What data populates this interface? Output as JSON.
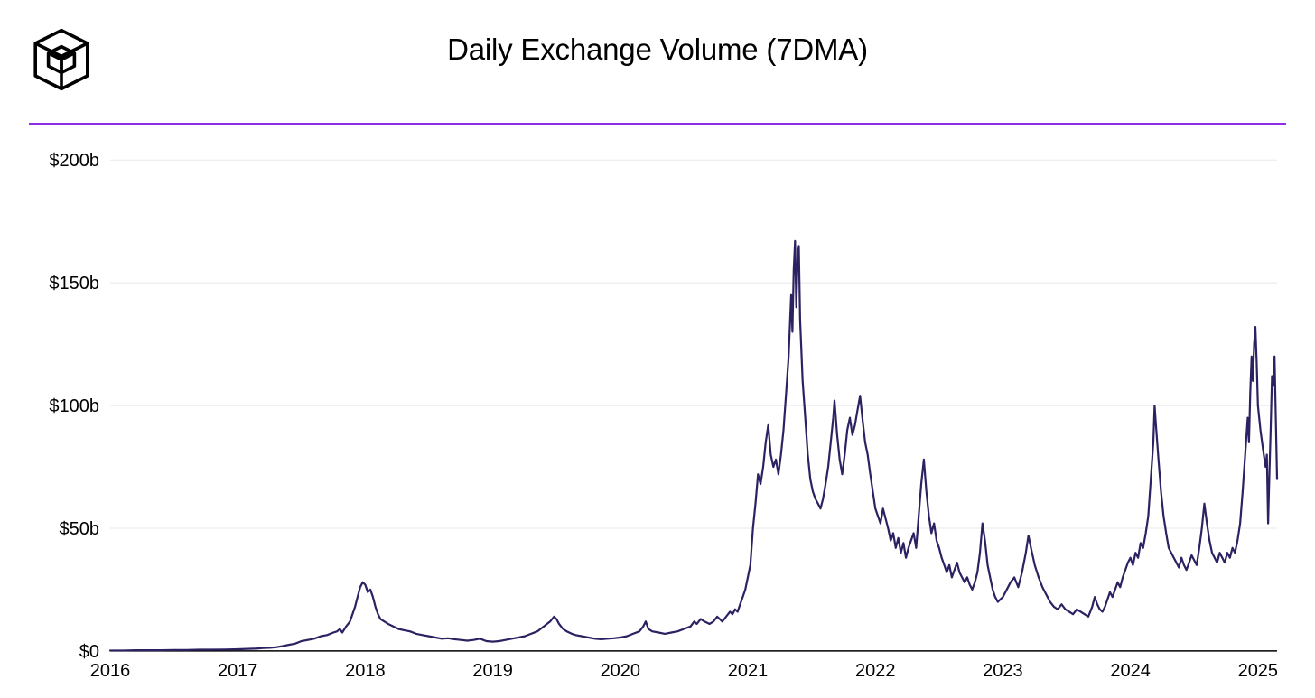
{
  "title": "Daily Exchange Volume (7DMA)",
  "accent_color": "#8e2de2",
  "chart": {
    "type": "line",
    "background_color": "#ffffff",
    "grid_color": "#e8e8e8",
    "axis_color": "#000000",
    "line_color": "#2b2262",
    "line_width": 2.2,
    "title_fontsize": 33,
    "label_fontsize": 20,
    "xlim": [
      2016,
      2025.15
    ],
    "ylim": [
      0,
      210
    ],
    "ytick_step": 50,
    "yticks": [
      {
        "v": 0,
        "label": "$0"
      },
      {
        "v": 50,
        "label": "$50b"
      },
      {
        "v": 100,
        "label": "$100b"
      },
      {
        "v": 150,
        "label": "$150b"
      },
      {
        "v": 200,
        "label": "$200b"
      }
    ],
    "xticks": [
      {
        "v": 2016,
        "label": "2016"
      },
      {
        "v": 2017,
        "label": "2017"
      },
      {
        "v": 2018,
        "label": "2018"
      },
      {
        "v": 2019,
        "label": "2019"
      },
      {
        "v": 2020,
        "label": "2020"
      },
      {
        "v": 2021,
        "label": "2021"
      },
      {
        "v": 2022,
        "label": "2022"
      },
      {
        "v": 2023,
        "label": "2023"
      },
      {
        "v": 2024,
        "label": "2024"
      },
      {
        "v": 2025,
        "label": "2025"
      }
    ],
    "series": [
      [
        2016.0,
        0.2
      ],
      [
        2016.1,
        0.2
      ],
      [
        2016.2,
        0.3
      ],
      [
        2016.3,
        0.3
      ],
      [
        2016.4,
        0.3
      ],
      [
        2016.5,
        0.4
      ],
      [
        2016.6,
        0.4
      ],
      [
        2016.7,
        0.5
      ],
      [
        2016.8,
        0.5
      ],
      [
        2016.9,
        0.6
      ],
      [
        2017.0,
        0.7
      ],
      [
        2017.05,
        0.8
      ],
      [
        2017.1,
        0.9
      ],
      [
        2017.15,
        1.0
      ],
      [
        2017.2,
        1.2
      ],
      [
        2017.25,
        1.3
      ],
      [
        2017.3,
        1.5
      ],
      [
        2017.35,
        2.0
      ],
      [
        2017.4,
        2.5
      ],
      [
        2017.45,
        3.0
      ],
      [
        2017.5,
        4.0
      ],
      [
        2017.55,
        4.5
      ],
      [
        2017.6,
        5.0
      ],
      [
        2017.65,
        6.0
      ],
      [
        2017.7,
        6.5
      ],
      [
        2017.75,
        7.5
      ],
      [
        2017.78,
        8.0
      ],
      [
        2017.8,
        9.0
      ],
      [
        2017.82,
        7.5
      ],
      [
        2017.85,
        10.0
      ],
      [
        2017.88,
        12.0
      ],
      [
        2017.9,
        15.0
      ],
      [
        2017.92,
        18.0
      ],
      [
        2017.94,
        22.0
      ],
      [
        2017.96,
        26.0
      ],
      [
        2017.98,
        28.0
      ],
      [
        2018.0,
        27.0
      ],
      [
        2018.02,
        24.0
      ],
      [
        2018.04,
        25.0
      ],
      [
        2018.06,
        22.0
      ],
      [
        2018.08,
        18.0
      ],
      [
        2018.1,
        15.0
      ],
      [
        2018.12,
        13.0
      ],
      [
        2018.15,
        12.0
      ],
      [
        2018.18,
        11.0
      ],
      [
        2018.22,
        10.0
      ],
      [
        2018.26,
        9.0
      ],
      [
        2018.3,
        8.5
      ],
      [
        2018.35,
        8.0
      ],
      [
        2018.4,
        7.0
      ],
      [
        2018.45,
        6.5
      ],
      [
        2018.5,
        6.0
      ],
      [
        2018.55,
        5.5
      ],
      [
        2018.6,
        5.0
      ],
      [
        2018.65,
        5.2
      ],
      [
        2018.7,
        4.8
      ],
      [
        2018.75,
        4.5
      ],
      [
        2018.8,
        4.2
      ],
      [
        2018.85,
        4.5
      ],
      [
        2018.9,
        5.0
      ],
      [
        2018.95,
        4.0
      ],
      [
        2019.0,
        3.8
      ],
      [
        2019.05,
        4.0
      ],
      [
        2019.1,
        4.5
      ],
      [
        2019.15,
        5.0
      ],
      [
        2019.2,
        5.5
      ],
      [
        2019.25,
        6.0
      ],
      [
        2019.3,
        7.0
      ],
      [
        2019.35,
        8.0
      ],
      [
        2019.4,
        10.0
      ],
      [
        2019.45,
        12.0
      ],
      [
        2019.48,
        14.0
      ],
      [
        2019.5,
        13.0
      ],
      [
        2019.52,
        11.0
      ],
      [
        2019.55,
        9.0
      ],
      [
        2019.58,
        8.0
      ],
      [
        2019.62,
        7.0
      ],
      [
        2019.65,
        6.5
      ],
      [
        2019.7,
        6.0
      ],
      [
        2019.75,
        5.5
      ],
      [
        2019.8,
        5.0
      ],
      [
        2019.85,
        4.8
      ],
      [
        2019.9,
        5.0
      ],
      [
        2019.95,
        5.2
      ],
      [
        2020.0,
        5.5
      ],
      [
        2020.05,
        6.0
      ],
      [
        2020.1,
        7.0
      ],
      [
        2020.15,
        8.0
      ],
      [
        2020.18,
        10.0
      ],
      [
        2020.2,
        12.0
      ],
      [
        2020.22,
        9.0
      ],
      [
        2020.25,
        8.0
      ],
      [
        2020.3,
        7.5
      ],
      [
        2020.35,
        7.0
      ],
      [
        2020.4,
        7.5
      ],
      [
        2020.45,
        8.0
      ],
      [
        2020.5,
        9.0
      ],
      [
        2020.55,
        10.0
      ],
      [
        2020.58,
        12.0
      ],
      [
        2020.6,
        11.0
      ],
      [
        2020.63,
        13.0
      ],
      [
        2020.66,
        12.0
      ],
      [
        2020.7,
        11.0
      ],
      [
        2020.73,
        12.0
      ],
      [
        2020.76,
        14.0
      ],
      [
        2020.78,
        13.0
      ],
      [
        2020.8,
        12.0
      ],
      [
        2020.83,
        14.0
      ],
      [
        2020.86,
        16.0
      ],
      [
        2020.88,
        15.0
      ],
      [
        2020.9,
        17.0
      ],
      [
        2020.92,
        16.0
      ],
      [
        2020.94,
        19.0
      ],
      [
        2020.96,
        22.0
      ],
      [
        2020.98,
        25.0
      ],
      [
        2021.0,
        30.0
      ],
      [
        2021.02,
        35.0
      ],
      [
        2021.04,
        50.0
      ],
      [
        2021.06,
        60.0
      ],
      [
        2021.08,
        72.0
      ],
      [
        2021.1,
        68.0
      ],
      [
        2021.12,
        75.0
      ],
      [
        2021.14,
        85.0
      ],
      [
        2021.16,
        92.0
      ],
      [
        2021.18,
        80.0
      ],
      [
        2021.2,
        75.0
      ],
      [
        2021.22,
        78.0
      ],
      [
        2021.24,
        72.0
      ],
      [
        2021.26,
        80.0
      ],
      [
        2021.28,
        90.0
      ],
      [
        2021.3,
        105.0
      ],
      [
        2021.32,
        120.0
      ],
      [
        2021.34,
        145.0
      ],
      [
        2021.35,
        130.0
      ],
      [
        2021.36,
        155.0
      ],
      [
        2021.37,
        167.0
      ],
      [
        2021.38,
        140.0
      ],
      [
        2021.39,
        160.0
      ],
      [
        2021.4,
        165.0
      ],
      [
        2021.41,
        135.0
      ],
      [
        2021.43,
        110.0
      ],
      [
        2021.45,
        95.0
      ],
      [
        2021.47,
        80.0
      ],
      [
        2021.49,
        70.0
      ],
      [
        2021.51,
        65.0
      ],
      [
        2021.53,
        62.0
      ],
      [
        2021.55,
        60.0
      ],
      [
        2021.57,
        58.0
      ],
      [
        2021.59,
        62.0
      ],
      [
        2021.61,
        68.0
      ],
      [
        2021.63,
        75.0
      ],
      [
        2021.65,
        85.0
      ],
      [
        2021.67,
        95.0
      ],
      [
        2021.68,
        102.0
      ],
      [
        2021.7,
        88.0
      ],
      [
        2021.72,
        78.0
      ],
      [
        2021.74,
        72.0
      ],
      [
        2021.76,
        80.0
      ],
      [
        2021.78,
        90.0
      ],
      [
        2021.8,
        95.0
      ],
      [
        2021.82,
        88.0
      ],
      [
        2021.84,
        92.0
      ],
      [
        2021.86,
        98.0
      ],
      [
        2021.88,
        104.0
      ],
      [
        2021.9,
        94.0
      ],
      [
        2021.92,
        85.0
      ],
      [
        2021.94,
        80.0
      ],
      [
        2021.96,
        72.0
      ],
      [
        2021.98,
        65.0
      ],
      [
        2022.0,
        58.0
      ],
      [
        2022.02,
        55.0
      ],
      [
        2022.04,
        52.0
      ],
      [
        2022.06,
        58.0
      ],
      [
        2022.08,
        54.0
      ],
      [
        2022.1,
        50.0
      ],
      [
        2022.12,
        45.0
      ],
      [
        2022.14,
        48.0
      ],
      [
        2022.16,
        42.0
      ],
      [
        2022.18,
        46.0
      ],
      [
        2022.2,
        40.0
      ],
      [
        2022.22,
        44.0
      ],
      [
        2022.24,
        38.0
      ],
      [
        2022.26,
        42.0
      ],
      [
        2022.28,
        45.0
      ],
      [
        2022.3,
        48.0
      ],
      [
        2022.32,
        42.0
      ],
      [
        2022.34,
        55.0
      ],
      [
        2022.36,
        68.0
      ],
      [
        2022.38,
        78.0
      ],
      [
        2022.4,
        65.0
      ],
      [
        2022.42,
        55.0
      ],
      [
        2022.44,
        48.0
      ],
      [
        2022.46,
        52.0
      ],
      [
        2022.48,
        45.0
      ],
      [
        2022.5,
        42.0
      ],
      [
        2022.52,
        38.0
      ],
      [
        2022.54,
        35.0
      ],
      [
        2022.56,
        32.0
      ],
      [
        2022.58,
        35.0
      ],
      [
        2022.6,
        30.0
      ],
      [
        2022.62,
        33.0
      ],
      [
        2022.64,
        36.0
      ],
      [
        2022.66,
        32.0
      ],
      [
        2022.68,
        30.0
      ],
      [
        2022.7,
        28.0
      ],
      [
        2022.72,
        30.0
      ],
      [
        2022.74,
        27.0
      ],
      [
        2022.76,
        25.0
      ],
      [
        2022.78,
        28.0
      ],
      [
        2022.8,
        32.0
      ],
      [
        2022.82,
        40.0
      ],
      [
        2022.84,
        52.0
      ],
      [
        2022.86,
        45.0
      ],
      [
        2022.88,
        35.0
      ],
      [
        2022.9,
        30.0
      ],
      [
        2022.92,
        25.0
      ],
      [
        2022.94,
        22.0
      ],
      [
        2022.96,
        20.0
      ],
      [
        2022.98,
        21.0
      ],
      [
        2023.0,
        22.0
      ],
      [
        2023.03,
        25.0
      ],
      [
        2023.06,
        28.0
      ],
      [
        2023.09,
        30.0
      ],
      [
        2023.12,
        26.0
      ],
      [
        2023.15,
        32.0
      ],
      [
        2023.18,
        40.0
      ],
      [
        2023.2,
        47.0
      ],
      [
        2023.22,
        42.0
      ],
      [
        2023.25,
        35.0
      ],
      [
        2023.28,
        30.0
      ],
      [
        2023.31,
        26.0
      ],
      [
        2023.34,
        23.0
      ],
      [
        2023.37,
        20.0
      ],
      [
        2023.4,
        18.0
      ],
      [
        2023.43,
        17.0
      ],
      [
        2023.46,
        19.0
      ],
      [
        2023.49,
        17.0
      ],
      [
        2023.52,
        16.0
      ],
      [
        2023.55,
        15.0
      ],
      [
        2023.58,
        17.0
      ],
      [
        2023.61,
        16.0
      ],
      [
        2023.64,
        15.0
      ],
      [
        2023.67,
        14.0
      ],
      [
        2023.7,
        18.0
      ],
      [
        2023.72,
        22.0
      ],
      [
        2023.74,
        19.0
      ],
      [
        2023.76,
        17.0
      ],
      [
        2023.78,
        16.0
      ],
      [
        2023.8,
        18.0
      ],
      [
        2023.82,
        21.0
      ],
      [
        2023.84,
        24.0
      ],
      [
        2023.86,
        22.0
      ],
      [
        2023.88,
        25.0
      ],
      [
        2023.9,
        28.0
      ],
      [
        2023.92,
        26.0
      ],
      [
        2023.94,
        30.0
      ],
      [
        2023.96,
        33.0
      ],
      [
        2023.98,
        36.0
      ],
      [
        2024.0,
        38.0
      ],
      [
        2024.02,
        35.0
      ],
      [
        2024.04,
        40.0
      ],
      [
        2024.06,
        38.0
      ],
      [
        2024.08,
        44.0
      ],
      [
        2024.1,
        42.0
      ],
      [
        2024.12,
        48.0
      ],
      [
        2024.14,
        55.0
      ],
      [
        2024.16,
        70.0
      ],
      [
        2024.18,
        85.0
      ],
      [
        2024.19,
        100.0
      ],
      [
        2024.2,
        92.0
      ],
      [
        2024.22,
        78.0
      ],
      [
        2024.24,
        65.0
      ],
      [
        2024.26,
        55.0
      ],
      [
        2024.28,
        48.0
      ],
      [
        2024.3,
        42.0
      ],
      [
        2024.32,
        40.0
      ],
      [
        2024.34,
        38.0
      ],
      [
        2024.36,
        36.0
      ],
      [
        2024.38,
        34.0
      ],
      [
        2024.4,
        38.0
      ],
      [
        2024.42,
        35.0
      ],
      [
        2024.44,
        33.0
      ],
      [
        2024.46,
        36.0
      ],
      [
        2024.48,
        39.0
      ],
      [
        2024.5,
        37.0
      ],
      [
        2024.52,
        35.0
      ],
      [
        2024.54,
        42.0
      ],
      [
        2024.56,
        50.0
      ],
      [
        2024.58,
        60.0
      ],
      [
        2024.6,
        52.0
      ],
      [
        2024.62,
        45.0
      ],
      [
        2024.64,
        40.0
      ],
      [
        2024.66,
        38.0
      ],
      [
        2024.68,
        36.0
      ],
      [
        2024.7,
        40.0
      ],
      [
        2024.72,
        38.0
      ],
      [
        2024.74,
        36.0
      ],
      [
        2024.76,
        40.0
      ],
      [
        2024.78,
        38.0
      ],
      [
        2024.8,
        42.0
      ],
      [
        2024.82,
        40.0
      ],
      [
        2024.84,
        45.0
      ],
      [
        2024.86,
        52.0
      ],
      [
        2024.88,
        65.0
      ],
      [
        2024.9,
        80.0
      ],
      [
        2024.92,
        95.0
      ],
      [
        2024.93,
        85.0
      ],
      [
        2024.94,
        105.0
      ],
      [
        2024.95,
        120.0
      ],
      [
        2024.96,
        110.0
      ],
      [
        2024.97,
        125.0
      ],
      [
        2024.98,
        132.0
      ],
      [
        2024.99,
        118.0
      ],
      [
        2025.0,
        100.0
      ],
      [
        2025.02,
        90.0
      ],
      [
        2025.04,
        82.0
      ],
      [
        2025.06,
        75.0
      ],
      [
        2025.07,
        80.0
      ],
      [
        2025.08,
        52.0
      ],
      [
        2025.09,
        72.0
      ],
      [
        2025.1,
        90.0
      ],
      [
        2025.11,
        112.0
      ],
      [
        2025.12,
        108.0
      ],
      [
        2025.13,
        120.0
      ],
      [
        2025.14,
        95.0
      ],
      [
        2025.15,
        70.0
      ]
    ]
  }
}
